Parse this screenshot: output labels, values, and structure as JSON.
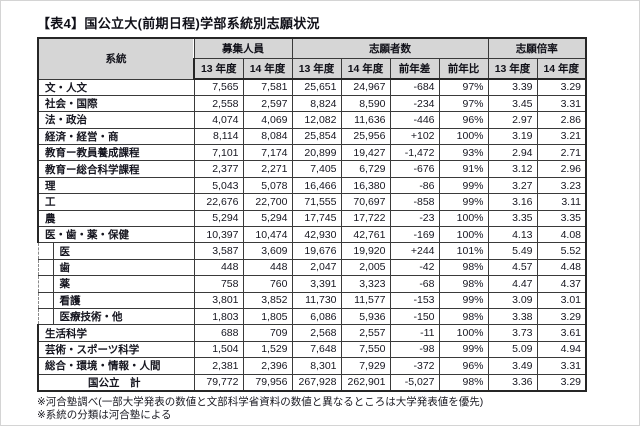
{
  "title": "【表4】国公立大(前期日程)学部系統別志願状況",
  "table": {
    "group_headers": [
      "系統",
      "募集人員",
      "志願者数",
      "志願倍率"
    ],
    "sub_headers": [
      "13 年度",
      "14 年度",
      "13 年度",
      "14 年度",
      "前年差",
      "前年比",
      "13 年度",
      "14 年度"
    ],
    "rows": [
      {
        "label": "文・人文",
        "indent": false,
        "total": false,
        "values": [
          "7,565",
          "7,581",
          "25,651",
          "24,967",
          "-684",
          "97%",
          "3.39",
          "3.29"
        ]
      },
      {
        "label": "社会・国際",
        "indent": false,
        "total": false,
        "values": [
          "2,558",
          "2,597",
          "8,824",
          "8,590",
          "-234",
          "97%",
          "3.45",
          "3.31"
        ]
      },
      {
        "label": "法・政治",
        "indent": false,
        "total": false,
        "values": [
          "4,074",
          "4,069",
          "12,082",
          "11,636",
          "-446",
          "96%",
          "2.97",
          "2.86"
        ]
      },
      {
        "label": "経済・経営・商",
        "indent": false,
        "total": false,
        "values": [
          "8,114",
          "8,084",
          "25,854",
          "25,956",
          "+102",
          "100%",
          "3.19",
          "3.21"
        ]
      },
      {
        "label": "教育ー教員養成課程",
        "indent": false,
        "total": false,
        "values": [
          "7,101",
          "7,174",
          "20,899",
          "19,427",
          "-1,472",
          "93%",
          "2.94",
          "2.71"
        ]
      },
      {
        "label": "教育ー総合科学課程",
        "indent": false,
        "total": false,
        "values": [
          "2,377",
          "2,271",
          "7,405",
          "6,729",
          "-676",
          "91%",
          "3.12",
          "2.96"
        ]
      },
      {
        "label": "理",
        "indent": false,
        "total": false,
        "values": [
          "5,043",
          "5,078",
          "16,466",
          "16,380",
          "-86",
          "99%",
          "3.27",
          "3.23"
        ]
      },
      {
        "label": "工",
        "indent": false,
        "total": false,
        "values": [
          "22,676",
          "22,700",
          "71,555",
          "70,697",
          "-858",
          "99%",
          "3.16",
          "3.11"
        ]
      },
      {
        "label": "農",
        "indent": false,
        "total": false,
        "values": [
          "5,294",
          "5,294",
          "17,745",
          "17,722",
          "-23",
          "100%",
          "3.35",
          "3.35"
        ]
      },
      {
        "label": "医・歯・薬・保健",
        "indent": false,
        "total": false,
        "values": [
          "10,397",
          "10,474",
          "42,930",
          "42,761",
          "-169",
          "100%",
          "4.13",
          "4.08"
        ]
      },
      {
        "label": "医",
        "indent": true,
        "total": false,
        "values": [
          "3,587",
          "3,609",
          "19,676",
          "19,920",
          "+244",
          "101%",
          "5.49",
          "5.52"
        ]
      },
      {
        "label": "歯",
        "indent": true,
        "total": false,
        "values": [
          "448",
          "448",
          "2,047",
          "2,005",
          "-42",
          "98%",
          "4.57",
          "4.48"
        ]
      },
      {
        "label": "薬",
        "indent": true,
        "total": false,
        "values": [
          "758",
          "760",
          "3,391",
          "3,323",
          "-68",
          "98%",
          "4.47",
          "4.37"
        ]
      },
      {
        "label": "看護",
        "indent": true,
        "total": false,
        "values": [
          "3,801",
          "3,852",
          "11,730",
          "11,577",
          "-153",
          "99%",
          "3.09",
          "3.01"
        ]
      },
      {
        "label": "医療技術・他",
        "indent": true,
        "total": false,
        "values": [
          "1,803",
          "1,805",
          "6,086",
          "5,936",
          "-150",
          "98%",
          "3.38",
          "3.29"
        ]
      },
      {
        "label": "生活科学",
        "indent": false,
        "total": false,
        "values": [
          "688",
          "709",
          "2,568",
          "2,557",
          "-11",
          "100%",
          "3.73",
          "3.61"
        ]
      },
      {
        "label": "芸術・スポーツ科学",
        "indent": false,
        "total": false,
        "values": [
          "1,504",
          "1,529",
          "7,648",
          "7,550",
          "-98",
          "99%",
          "5.09",
          "4.94"
        ]
      },
      {
        "label": "総合・環境・情報・人間",
        "indent": false,
        "total": false,
        "values": [
          "2,381",
          "2,396",
          "8,301",
          "7,929",
          "-372",
          "96%",
          "3.49",
          "3.31"
        ]
      },
      {
        "label": "国公立　計",
        "indent": false,
        "total": true,
        "values": [
          "79,772",
          "79,956",
          "267,928",
          "262,901",
          "-5,027",
          "98%",
          "3.36",
          "3.29"
        ]
      }
    ]
  },
  "notes": [
    "※河合塾調べ(一部大学発表の数値と文部科学省資料の数値と異なるところは大学発表値を優先)",
    "※系統の分類は河合塾による"
  ],
  "colors": {
    "header_bg": "#d6d6d6",
    "border": "#3a3a3a",
    "text": "#15151f"
  }
}
